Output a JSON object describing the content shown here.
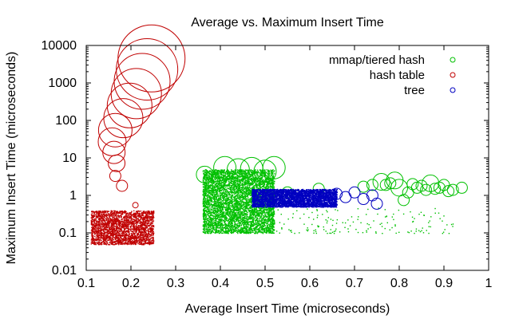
{
  "chart_data": {
    "type": "scatter",
    "title": "Average vs. Maximum Insert Time",
    "xlabel": "Average Insert Time (microseconds)",
    "ylabel": "Maximum Insert Time (microseconds)",
    "xlim": [
      0.1,
      1.0
    ],
    "ylim": [
      0.01,
      10000
    ],
    "y_scale": "log",
    "x_ticks": [
      0.1,
      0.2,
      0.3,
      0.4,
      0.5,
      0.6,
      0.7,
      0.8,
      0.9,
      1.0
    ],
    "x_tick_labels": [
      "0.1",
      "0.2",
      "0.3",
      "0.4",
      "0.5",
      "0.6",
      "0.7",
      "0.8",
      "0.9",
      "1"
    ],
    "y_ticks": [
      0.01,
      0.1,
      1,
      10,
      100,
      1000,
      10000
    ],
    "y_tick_labels": [
      "0.01",
      "0.1",
      "1",
      "10",
      "100",
      "1000",
      "10000"
    ],
    "grid": false,
    "legend_position": "top-right",
    "series": [
      {
        "name": "mmap/tiered hash",
        "color": "#00c000",
        "marker": "circle",
        "points": [
          {
            "x": 0.365,
            "y": 3.6,
            "size": 3
          },
          {
            "x": 0.38,
            "y": 2.6,
            "size": 3
          },
          {
            "x": 0.41,
            "y": 5.5,
            "size": 4
          },
          {
            "x": 0.44,
            "y": 4.8,
            "size": 4
          },
          {
            "x": 0.47,
            "y": 5.2,
            "size": 4
          },
          {
            "x": 0.5,
            "y": 4.4,
            "size": 4
          },
          {
            "x": 0.52,
            "y": 5.5,
            "size": 4
          },
          {
            "x": 0.55,
            "y": 1.2,
            "size": 2
          },
          {
            "x": 0.62,
            "y": 1.5,
            "size": 2
          },
          {
            "x": 0.72,
            "y": 1.7,
            "size": 2
          },
          {
            "x": 0.74,
            "y": 1.9,
            "size": 2
          },
          {
            "x": 0.76,
            "y": 2.3,
            "size": 3
          },
          {
            "x": 0.77,
            "y": 1.9,
            "size": 2
          },
          {
            "x": 0.78,
            "y": 2.1,
            "size": 2
          },
          {
            "x": 0.79,
            "y": 2.5,
            "size": 3
          },
          {
            "x": 0.8,
            "y": 1.6,
            "size": 3
          },
          {
            "x": 0.81,
            "y": 0.75,
            "size": 2
          },
          {
            "x": 0.82,
            "y": 1.2,
            "size": 2
          },
          {
            "x": 0.83,
            "y": 2.0,
            "size": 2
          },
          {
            "x": 0.84,
            "y": 1.6,
            "size": 2
          },
          {
            "x": 0.85,
            "y": 1.8,
            "size": 2
          },
          {
            "x": 0.86,
            "y": 1.4,
            "size": 2
          },
          {
            "x": 0.87,
            "y": 2.1,
            "size": 3
          },
          {
            "x": 0.88,
            "y": 1.5,
            "size": 2
          },
          {
            "x": 0.89,
            "y": 1.6,
            "size": 2
          },
          {
            "x": 0.9,
            "y": 1.9,
            "size": 2
          },
          {
            "x": 0.91,
            "y": 1.3,
            "size": 2
          },
          {
            "x": 0.92,
            "y": 1.4,
            "size": 2
          },
          {
            "x": 0.94,
            "y": 1.6,
            "size": 2
          }
        ],
        "dense_region": {
          "x": [
            0.36,
            0.52
          ],
          "y": [
            0.1,
            5
          ]
        },
        "sparse_tail": {
          "x": [
            0.52,
            0.92
          ],
          "y": [
            0.1,
            0.5
          ]
        }
      },
      {
        "name": "hash table",
        "color": "#c00000",
        "marker": "circle",
        "points": [
          {
            "x": 0.165,
            "y": 3.3,
            "size": 2
          },
          {
            "x": 0.168,
            "y": 7.2,
            "size": 3
          },
          {
            "x": 0.162,
            "y": 14,
            "size": 4
          },
          {
            "x": 0.158,
            "y": 27,
            "size": 5
          },
          {
            "x": 0.165,
            "y": 55,
            "size": 6
          },
          {
            "x": 0.183,
            "y": 115,
            "size": 7
          },
          {
            "x": 0.197,
            "y": 250,
            "size": 8
          },
          {
            "x": 0.212,
            "y": 520,
            "size": 9
          },
          {
            "x": 0.225,
            "y": 1100,
            "size": 10
          },
          {
            "x": 0.236,
            "y": 2300,
            "size": 11
          },
          {
            "x": 0.246,
            "y": 4500,
            "size": 12
          },
          {
            "x": 0.18,
            "y": 1.8,
            "size": 2
          },
          {
            "x": 0.21,
            "y": 0.55,
            "size": 1
          }
        ],
        "dense_region": {
          "x": [
            0.11,
            0.25
          ],
          "y": [
            0.05,
            0.4
          ]
        }
      },
      {
        "name": "tree",
        "color": "#0000c0",
        "marker": "circle",
        "points": [
          {
            "x": 0.66,
            "y": 1.1,
            "size": 2
          },
          {
            "x": 0.68,
            "y": 0.9,
            "size": 2
          },
          {
            "x": 0.7,
            "y": 1.2,
            "size": 2
          },
          {
            "x": 0.72,
            "y": 0.8,
            "size": 2
          },
          {
            "x": 0.74,
            "y": 1.0,
            "size": 2
          },
          {
            "x": 0.75,
            "y": 0.6,
            "size": 2
          }
        ],
        "dense_region": {
          "x": [
            0.47,
            0.66
          ],
          "y": [
            0.5,
            1.5
          ]
        }
      }
    ]
  }
}
